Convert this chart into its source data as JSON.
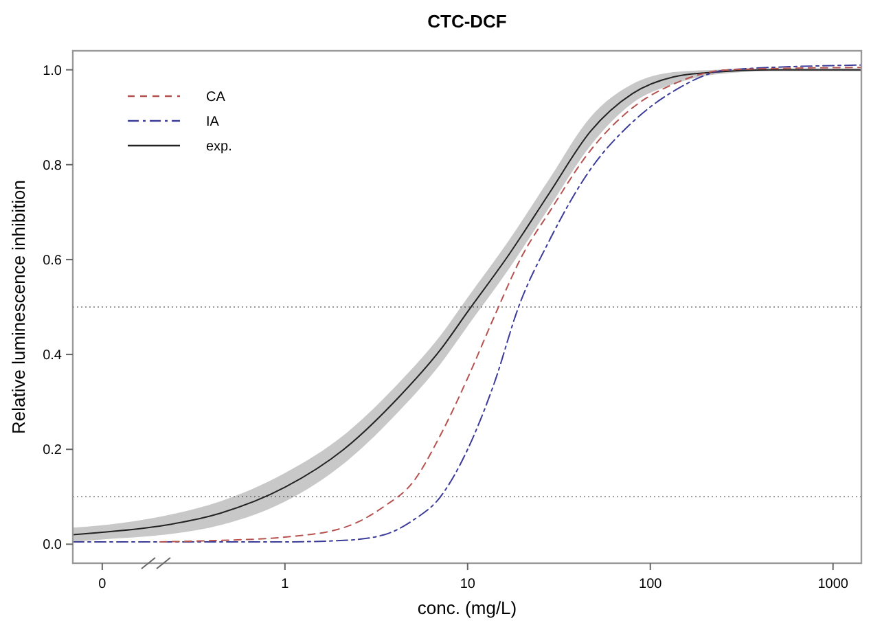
{
  "chart_data": {
    "type": "line",
    "title": "CTC-DCF",
    "xlabel": "conc. (mg/L)",
    "ylabel": "Relative luminescence inhibition",
    "log": "x",
    "xlim": [
      0.069,
      1430
    ],
    "xticks": [
      {
        "value": 0.1,
        "label": "0"
      },
      1,
      10,
      100,
      1000
    ],
    "ylim": [
      -0.04,
      1.04
    ],
    "yticks": [
      {
        "value": 0,
        "label": "0.0"
      },
      {
        "value": 0.2,
        "label": "0.2"
      },
      {
        "value": 0.4,
        "label": "0.4"
      },
      {
        "value": 0.6,
        "label": "0.6"
      },
      {
        "value": 0.8,
        "label": "0.8"
      },
      {
        "value": 1,
        "label": "1.0"
      }
    ],
    "legend": "top left",
    "marker": "none",
    "ref_lines": [
      {
        "axis": "y",
        "value": 0.5,
        "color": "#777777",
        "line_style": "dotted"
      },
      {
        "axis": "y",
        "value": 0.1,
        "color": "#777777",
        "line_style": "dotted"
      }
    ],
    "series": [
      {
        "name": "CA",
        "color": "#b5524f",
        "line_style": "dashed",
        "x": [
          0.207,
          0.44,
          1,
          2.1,
          3.5,
          5,
          7.1,
          10,
          14,
          20,
          28,
          47,
          80,
          134,
          268,
          1430
        ],
        "values": [
          0.005,
          0.008,
          0.015,
          0.035,
          0.08,
          0.13,
          0.23,
          0.35,
          0.48,
          0.61,
          0.7,
          0.83,
          0.92,
          0.97,
          1.0,
          1.005
        ]
      },
      {
        "name": "IA",
        "color": "#3b3b99",
        "line_style": "dashdot",
        "x": [
          0.069,
          0.44,
          1,
          2.1,
          3.5,
          5,
          7.1,
          10,
          14,
          19,
          28,
          47,
          80,
          134,
          268,
          1430
        ],
        "values": [
          0.005,
          0.005,
          0.005,
          0.008,
          0.02,
          0.05,
          0.1,
          0.2,
          0.34,
          0.5,
          0.64,
          0.79,
          0.89,
          0.955,
          1.0,
          1.01
        ]
      },
      {
        "name": "exp.",
        "color": "#222222",
        "line_style": "solid",
        "x": [
          0.069,
          0.1,
          0.22,
          0.44,
          1,
          2.1,
          4.2,
          7.1,
          10,
          16.8,
          28,
          47,
          80,
          134,
          225,
          450,
          1430
        ],
        "values": [
          0.02,
          0.025,
          0.04,
          0.065,
          0.12,
          0.2,
          0.31,
          0.41,
          0.49,
          0.61,
          0.74,
          0.87,
          0.95,
          0.985,
          0.995,
          1.0,
          1.0
        ],
        "lower": [
          0.005,
          0.01,
          0.02,
          0.04,
          0.09,
          0.17,
          0.28,
          0.38,
          0.46,
          0.58,
          0.71,
          0.84,
          0.93,
          0.97,
          0.99,
          0.997,
          0.997
        ],
        "upper": [
          0.035,
          0.04,
          0.06,
          0.09,
          0.15,
          0.23,
          0.34,
          0.44,
          0.52,
          0.64,
          0.77,
          0.9,
          0.97,
          0.995,
          1.0,
          1.003,
          1.003
        ]
      }
    ]
  }
}
